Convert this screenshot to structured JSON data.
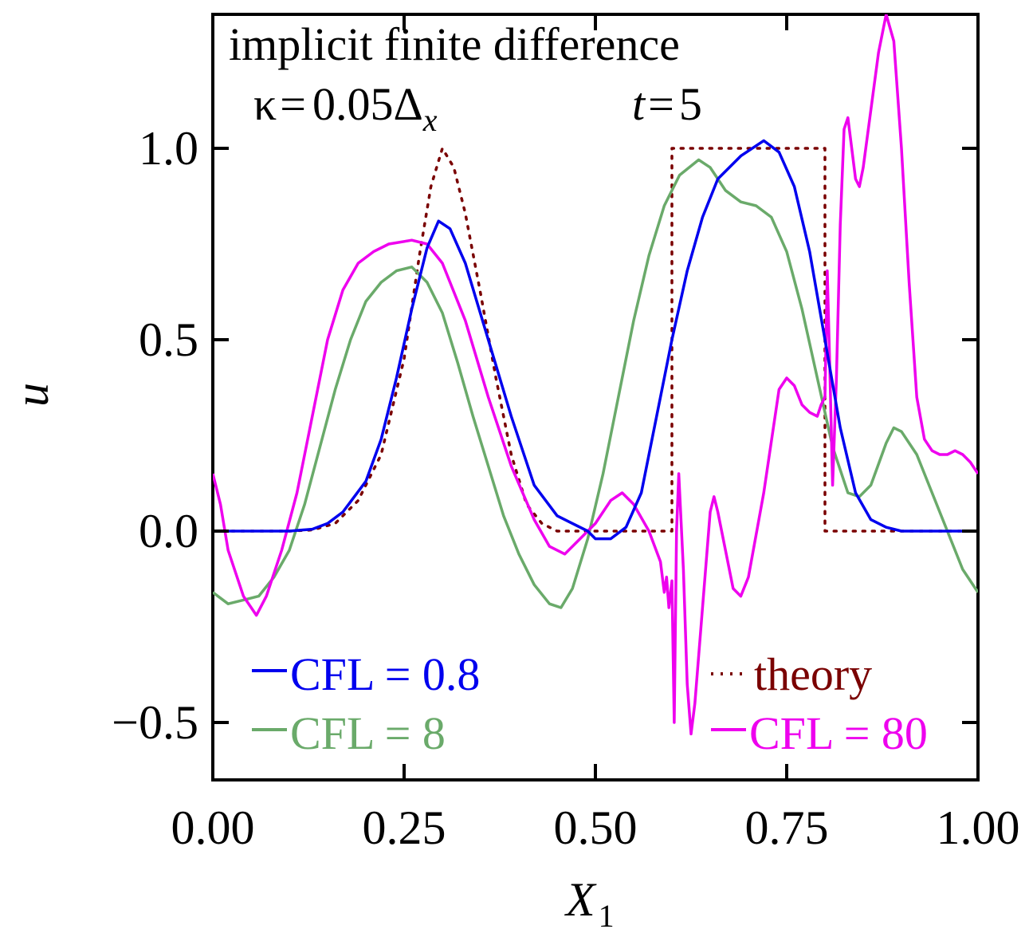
{
  "chart_data": {
    "type": "line",
    "title": "implicit finite difference",
    "annotations": {
      "kappa_label": {
        "symbol": "κ",
        "eq": "=",
        "value": "0.05Δ",
        "subscript": "x"
      },
      "time_label": {
        "var": "t",
        "eq": "=",
        "value": "5"
      }
    },
    "xlabel": {
      "main": "X",
      "subscript": "1"
    },
    "ylabel": "u",
    "xlim": [
      0,
      1
    ],
    "ylim": [
      -0.65,
      1.35
    ],
    "xticks": [
      0,
      0.25,
      0.5,
      0.75,
      1
    ],
    "xtick_labels": [
      "0.00",
      "0.25",
      "0.50",
      "0.75",
      "1.00"
    ],
    "yticks": [
      -0.5,
      0,
      0.5,
      1
    ],
    "ytick_labels": [
      "−0.5",
      "0.0",
      "0.5",
      "1.0"
    ],
    "grid": false,
    "legend": [
      {
        "series": 0,
        "text": "CFL = 0.8",
        "position": "bottom-left"
      },
      {
        "series": 2,
        "text": "CFL = 8",
        "position": "bottom-left"
      },
      {
        "series": 3,
        "text": "theory",
        "position": "bottom-right"
      },
      {
        "series": 1,
        "text": "CFL = 80",
        "position": "bottom-right"
      }
    ],
    "series": [
      {
        "name": "CFL = 0.8",
        "color": "#0000ee",
        "style": "solid",
        "points": [
          [
            0,
            0
          ],
          [
            0.05,
            0
          ],
          [
            0.1,
            0
          ],
          [
            0.13,
            0.005
          ],
          [
            0.15,
            0.02
          ],
          [
            0.17,
            0.05
          ],
          [
            0.2,
            0.13
          ],
          [
            0.22,
            0.24
          ],
          [
            0.24,
            0.4
          ],
          [
            0.26,
            0.58
          ],
          [
            0.28,
            0.74
          ],
          [
            0.295,
            0.81
          ],
          [
            0.31,
            0.79
          ],
          [
            0.33,
            0.7
          ],
          [
            0.36,
            0.5
          ],
          [
            0.39,
            0.3
          ],
          [
            0.42,
            0.12
          ],
          [
            0.45,
            0.04
          ],
          [
            0.47,
            0.02
          ],
          [
            0.49,
            0.0
          ],
          [
            0.5,
            -0.02
          ],
          [
            0.52,
            -0.02
          ],
          [
            0.54,
            0.01
          ],
          [
            0.56,
            0.1
          ],
          [
            0.58,
            0.3
          ],
          [
            0.6,
            0.5
          ],
          [
            0.62,
            0.68
          ],
          [
            0.64,
            0.82
          ],
          [
            0.66,
            0.92
          ],
          [
            0.69,
            0.98
          ],
          [
            0.72,
            1.02
          ],
          [
            0.74,
            0.99
          ],
          [
            0.76,
            0.9
          ],
          [
            0.78,
            0.73
          ],
          [
            0.8,
            0.5
          ],
          [
            0.82,
            0.27
          ],
          [
            0.84,
            0.1
          ],
          [
            0.86,
            0.03
          ],
          [
            0.88,
            0.01
          ],
          [
            0.9,
            0.0
          ],
          [
            1.0,
            0.0
          ]
        ]
      },
      {
        "name": "CFL = 80",
        "color": "#ee00ee",
        "style": "solid",
        "points": [
          [
            0,
            0.15
          ],
          [
            0.01,
            0.07
          ],
          [
            0.02,
            -0.05
          ],
          [
            0.04,
            -0.17
          ],
          [
            0.057,
            -0.22
          ],
          [
            0.07,
            -0.17
          ],
          [
            0.09,
            -0.05
          ],
          [
            0.11,
            0.1
          ],
          [
            0.13,
            0.3
          ],
          [
            0.15,
            0.5
          ],
          [
            0.17,
            0.63
          ],
          [
            0.19,
            0.7
          ],
          [
            0.21,
            0.73
          ],
          [
            0.23,
            0.75
          ],
          [
            0.26,
            0.76
          ],
          [
            0.28,
            0.75
          ],
          [
            0.3,
            0.7
          ],
          [
            0.33,
            0.55
          ],
          [
            0.36,
            0.35
          ],
          [
            0.39,
            0.17
          ],
          [
            0.42,
            0.03
          ],
          [
            0.44,
            -0.04
          ],
          [
            0.46,
            -0.06
          ],
          [
            0.48,
            -0.02
          ],
          [
            0.5,
            0.02
          ],
          [
            0.52,
            0.08
          ],
          [
            0.535,
            0.1
          ],
          [
            0.55,
            0.07
          ],
          [
            0.57,
            0.0
          ],
          [
            0.585,
            -0.08
          ],
          [
            0.59,
            -0.16
          ],
          [
            0.593,
            -0.12
          ],
          [
            0.596,
            -0.2
          ],
          [
            0.6,
            -0.13
          ],
          [
            0.603,
            -0.5
          ],
          [
            0.606,
            0.0
          ],
          [
            0.609,
            0.15
          ],
          [
            0.615,
            -0.1
          ],
          [
            0.62,
            -0.4
          ],
          [
            0.625,
            -0.53
          ],
          [
            0.63,
            -0.45
          ],
          [
            0.64,
            -0.2
          ],
          [
            0.65,
            0.05
          ],
          [
            0.655,
            0.09
          ],
          [
            0.66,
            0.05
          ],
          [
            0.67,
            -0.05
          ],
          [
            0.68,
            -0.15
          ],
          [
            0.69,
            -0.17
          ],
          [
            0.7,
            -0.12
          ],
          [
            0.72,
            0.1
          ],
          [
            0.74,
            0.37
          ],
          [
            0.75,
            0.4
          ],
          [
            0.76,
            0.38
          ],
          [
            0.77,
            0.33
          ],
          [
            0.78,
            0.31
          ],
          [
            0.79,
            0.3
          ],
          [
            0.795,
            0.33
          ],
          [
            0.8,
            0.35
          ],
          [
            0.803,
            0.68
          ],
          [
            0.806,
            0.45
          ],
          [
            0.81,
            0.12
          ],
          [
            0.815,
            0.4
          ],
          [
            0.82,
            0.8
          ],
          [
            0.825,
            1.05
          ],
          [
            0.83,
            1.08
          ],
          [
            0.835,
            1.0
          ],
          [
            0.84,
            0.92
          ],
          [
            0.845,
            0.9
          ],
          [
            0.85,
            0.95
          ],
          [
            0.86,
            1.1
          ],
          [
            0.87,
            1.25
          ],
          [
            0.88,
            1.35
          ],
          [
            0.89,
            1.28
          ],
          [
            0.9,
            1.0
          ],
          [
            0.91,
            0.65
          ],
          [
            0.92,
            0.35
          ],
          [
            0.93,
            0.24
          ],
          [
            0.94,
            0.21
          ],
          [
            0.95,
            0.2
          ],
          [
            0.96,
            0.2
          ],
          [
            0.97,
            0.21
          ],
          [
            0.98,
            0.2
          ],
          [
            0.99,
            0.18
          ],
          [
            1.0,
            0.15
          ]
        ]
      },
      {
        "name": "CFL = 8",
        "color": "#6aaa6a",
        "style": "solid",
        "points": [
          [
            0,
            -0.16
          ],
          [
            0.02,
            -0.19
          ],
          [
            0.04,
            -0.18
          ],
          [
            0.06,
            -0.17
          ],
          [
            0.08,
            -0.12
          ],
          [
            0.1,
            -0.05
          ],
          [
            0.12,
            0.07
          ],
          [
            0.14,
            0.22
          ],
          [
            0.16,
            0.37
          ],
          [
            0.18,
            0.5
          ],
          [
            0.2,
            0.6
          ],
          [
            0.22,
            0.65
          ],
          [
            0.24,
            0.68
          ],
          [
            0.26,
            0.69
          ],
          [
            0.28,
            0.65
          ],
          [
            0.3,
            0.57
          ],
          [
            0.32,
            0.44
          ],
          [
            0.34,
            0.3
          ],
          [
            0.36,
            0.17
          ],
          [
            0.38,
            0.04
          ],
          [
            0.4,
            -0.06
          ],
          [
            0.42,
            -0.14
          ],
          [
            0.44,
            -0.19
          ],
          [
            0.455,
            -0.2
          ],
          [
            0.47,
            -0.15
          ],
          [
            0.49,
            -0.02
          ],
          [
            0.51,
            0.15
          ],
          [
            0.53,
            0.35
          ],
          [
            0.55,
            0.55
          ],
          [
            0.57,
            0.72
          ],
          [
            0.59,
            0.85
          ],
          [
            0.61,
            0.93
          ],
          [
            0.635,
            0.97
          ],
          [
            0.65,
            0.95
          ],
          [
            0.67,
            0.89
          ],
          [
            0.69,
            0.86
          ],
          [
            0.71,
            0.85
          ],
          [
            0.73,
            0.82
          ],
          [
            0.75,
            0.73
          ],
          [
            0.77,
            0.58
          ],
          [
            0.79,
            0.4
          ],
          [
            0.81,
            0.22
          ],
          [
            0.83,
            0.1
          ],
          [
            0.845,
            0.09
          ],
          [
            0.86,
            0.12
          ],
          [
            0.88,
            0.23
          ],
          [
            0.89,
            0.27
          ],
          [
            0.9,
            0.26
          ],
          [
            0.92,
            0.2
          ],
          [
            0.94,
            0.1
          ],
          [
            0.96,
            0.0
          ],
          [
            0.98,
            -0.1
          ],
          [
            1.0,
            -0.16
          ]
        ]
      },
      {
        "name": "theory",
        "color": "#7a0000",
        "style": "dotted",
        "points": [
          [
            0,
            0
          ],
          [
            0.1,
            0
          ],
          [
            0.13,
            0.003
          ],
          [
            0.16,
            0.02
          ],
          [
            0.19,
            0.08
          ],
          [
            0.22,
            0.2
          ],
          [
            0.25,
            0.45
          ],
          [
            0.27,
            0.72
          ],
          [
            0.285,
            0.9
          ],
          [
            0.3,
            1.0
          ],
          [
            0.315,
            0.95
          ],
          [
            0.33,
            0.83
          ],
          [
            0.35,
            0.62
          ],
          [
            0.37,
            0.4
          ],
          [
            0.39,
            0.2
          ],
          [
            0.41,
            0.07
          ],
          [
            0.43,
            0.02
          ],
          [
            0.45,
            0.0
          ],
          [
            0.6,
            0.0
          ],
          [
            0.6,
            1.0
          ],
          [
            0.8,
            1.0
          ],
          [
            0.8,
            0.0
          ],
          [
            1.0,
            0.0
          ]
        ]
      }
    ]
  }
}
